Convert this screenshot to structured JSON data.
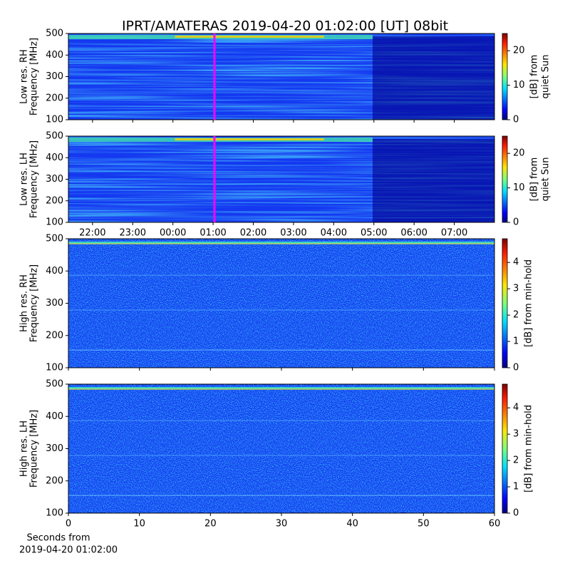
{
  "title": "IPRT/AMATERAS 2019-04-20 01:02:00 [UT]   08bit",
  "chart_data": [
    {
      "type": "heatmap",
      "ylabel": [
        "Low res. RH",
        "Frequency [MHz]"
      ],
      "ylim": [
        100,
        500
      ],
      "yticks": [
        100,
        200,
        300,
        400,
        500
      ],
      "xlim": [
        21.4,
        32.0
      ],
      "marker": 25.033,
      "marker_color": "#ff00ff",
      "colorbar": {
        "label": [
          "[dB] from",
          "quiet Sun"
        ],
        "lim": [
          0,
          25
        ],
        "ticks": [
          0,
          10,
          20
        ]
      }
    },
    {
      "type": "heatmap",
      "ylabel": [
        "Low res. LH",
        "Frequency [MHz]"
      ],
      "ylim": [
        100,
        500
      ],
      "yticks": [
        100,
        200,
        300,
        400,
        500
      ],
      "xlim": [
        21.4,
        32.0
      ],
      "marker": 25.033,
      "marker_color": "#ff00ff",
      "xticks": [
        {
          "value": 22,
          "label": "22:00"
        },
        {
          "value": 23,
          "label": "23:00"
        },
        {
          "value": 24,
          "label": "00:00"
        },
        {
          "value": 25,
          "label": "01:00"
        },
        {
          "value": 26,
          "label": "02:00"
        },
        {
          "value": 27,
          "label": "03:00"
        },
        {
          "value": 28,
          "label": "04:00"
        },
        {
          "value": 29,
          "label": "05:00"
        },
        {
          "value": 30,
          "label": "06:00"
        },
        {
          "value": 31,
          "label": "07:00"
        }
      ],
      "colorbar": {
        "label": [
          "[dB] from",
          "quiet Sun"
        ],
        "lim": [
          0,
          25
        ],
        "ticks": [
          0,
          10,
          20
        ]
      }
    },
    {
      "type": "heatmap",
      "ylabel": [
        "High res. RH",
        "Frequency [MHz]"
      ],
      "ylim": [
        100,
        500
      ],
      "yticks": [
        100,
        200,
        300,
        400,
        500
      ],
      "xlim": [
        0,
        60
      ],
      "colorbar": {
        "label": [
          "[dB] from min-hold"
        ],
        "lim": [
          0,
          4.9
        ],
        "ticks": [
          0,
          1,
          2,
          3,
          4
        ]
      }
    },
    {
      "type": "heatmap",
      "ylabel": [
        "High res. LH",
        "Frequency [MHz]"
      ],
      "ylim": [
        100,
        500
      ],
      "yticks": [
        100,
        200,
        300,
        400,
        500
      ],
      "xlim": [
        0,
        60
      ],
      "xticks": [
        0,
        10,
        20,
        30,
        40,
        50,
        60
      ],
      "xlabel": [
        "Seconds from",
        "2019-04-20 01:02:00"
      ],
      "colorbar": {
        "label": [
          "[dB] from min-hold"
        ],
        "lim": [
          0,
          4.9
        ],
        "ticks": [
          0,
          1,
          2,
          3,
          4
        ]
      }
    }
  ]
}
